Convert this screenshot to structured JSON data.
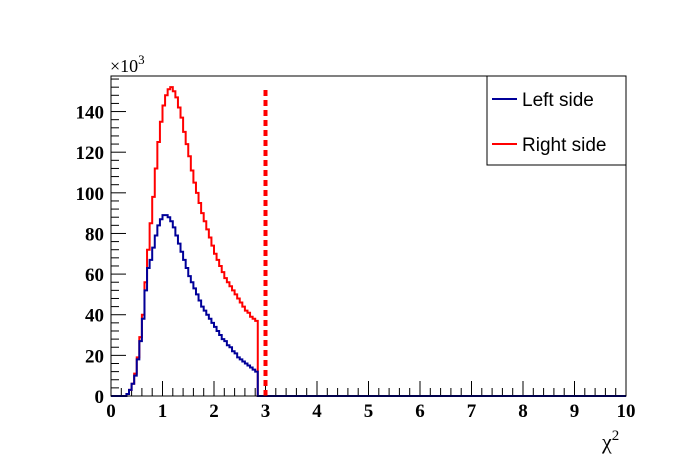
{
  "chart_data": {
    "type": "histogram",
    "title": "",
    "xlabel": "χ",
    "xlabel_superscript": "2",
    "ylabel": "",
    "y_multiplier": "×10",
    "y_multiplier_exponent": "3",
    "xlim": [
      0,
      10
    ],
    "ylim": [
      0,
      157.5
    ],
    "x_ticks": [
      "0",
      "1",
      "2",
      "3",
      "4",
      "5",
      "6",
      "7",
      "8",
      "9",
      "10"
    ],
    "y_ticks": [
      "0",
      "20",
      "40",
      "60",
      "80",
      "100",
      "120",
      "140"
    ],
    "grid": false,
    "legend_position": "top-right",
    "bin_width": 0.05,
    "cut_x": 3,
    "cut_color": "#ff0000",
    "series": [
      {
        "name": "Left side",
        "color": "#000099",
        "bin_start": 0.3,
        "values": [
          1,
          3,
          6,
          10,
          18,
          27,
          38,
          52,
          63,
          67,
          73,
          79,
          84,
          87,
          89,
          89,
          88,
          86,
          83,
          79,
          75,
          71,
          67,
          63,
          59,
          56,
          53,
          50,
          47,
          44,
          42,
          40,
          38,
          36,
          34,
          32,
          30,
          28,
          27,
          25,
          24,
          22,
          21,
          19,
          18,
          17,
          16,
          15,
          14,
          13,
          12
        ]
      },
      {
        "name": "Right side",
        "color": "#ff0000",
        "bin_start": 0.3,
        "values": [
          1,
          3,
          6,
          11,
          19,
          29,
          40,
          56,
          72,
          85,
          98,
          112,
          125,
          135,
          143,
          148,
          151,
          152,
          150,
          147,
          142,
          137,
          130,
          124,
          118,
          111,
          105,
          100,
          95,
          90,
          86,
          82,
          78,
          74,
          70,
          67,
          64,
          61,
          58,
          56,
          54,
          52,
          50,
          48,
          46,
          44,
          42,
          41,
          39,
          38,
          37
        ]
      }
    ]
  }
}
